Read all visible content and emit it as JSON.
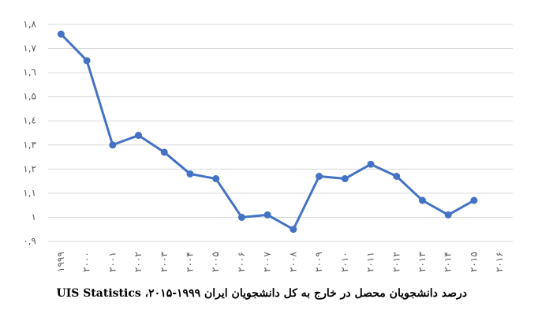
{
  "chart_data": {
    "type": "line",
    "title": "درصد دانشجویان محصل در خارج به کل دانشجویان ایران ۱۹۹۹-۲۰۱۵، UIS Statistics",
    "categories": [
      "۱۹۹۹",
      "۲۰۰۰",
      "۲۰۰۱",
      "۲۰۰۲",
      "۲۰۰۳",
      "۲۰۰۴",
      "۲۰۰۵",
      "۲۰۰۶",
      "۲۰۰۷",
      "۲۰۰۸",
      "۲۰۰۹",
      "۲۰۱۰",
      "۲۰۱۱",
      "۲۰۱۲",
      "۲۰۱۳",
      "۲۰۱۴",
      "۲۰۱۵",
      "۲۰۱۶"
    ],
    "values": [
      1.76,
      1.65,
      1.3,
      1.34,
      1.27,
      1.18,
      1.16,
      1.0,
      1.01,
      0.95,
      1.17,
      1.16,
      1.22,
      1.17,
      1.07,
      1.01,
      1.07,
      null
    ],
    "color": "#4472c4",
    "ylim": [
      0.9,
      1.8
    ],
    "yticks": [
      {
        "value": 0.9,
        "label": "۰,۹"
      },
      {
        "value": 1,
        "label": "۱"
      },
      {
        "value": 1.1,
        "label": "۱,۱"
      },
      {
        "value": 1.2,
        "label": "۱,۲"
      },
      {
        "value": 1.3,
        "label": "۱,۳"
      },
      {
        "value": 1.4,
        "label": "۱,٤"
      },
      {
        "value": 1.5,
        "label": "۱,۵"
      },
      {
        "value": 1.6,
        "label": "۱,٦"
      },
      {
        "value": 1.7,
        "label": "۱,۷"
      },
      {
        "value": 1.8,
        "label": "۱,۸"
      }
    ],
    "grid": true
  }
}
